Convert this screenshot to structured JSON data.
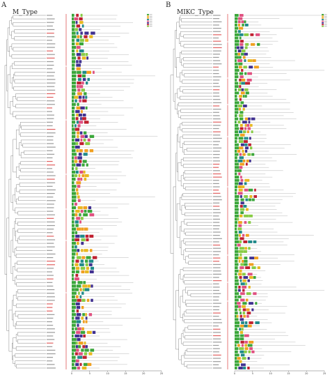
{
  "panels": [
    {
      "id": "A",
      "letter": "A",
      "title": "M_Type",
      "axis_ticks": [
        "0",
        "5",
        "10",
        "15",
        "20",
        "25"
      ],
      "leaf_count": 100
    },
    {
      "id": "B",
      "letter": "B",
      "title": "MIKC_Type",
      "axis_ticks": [
        "0",
        "5",
        "10",
        "15",
        "20",
        "25"
      ],
      "leaf_count": 110
    }
  ],
  "motif_colors": [
    "#3aa63a",
    "#e8b820",
    "#f0a020",
    "#1f8a8a",
    "#e05080",
    "#403090",
    "#c02030",
    "#88cc44"
  ],
  "accent": "#d94040"
}
